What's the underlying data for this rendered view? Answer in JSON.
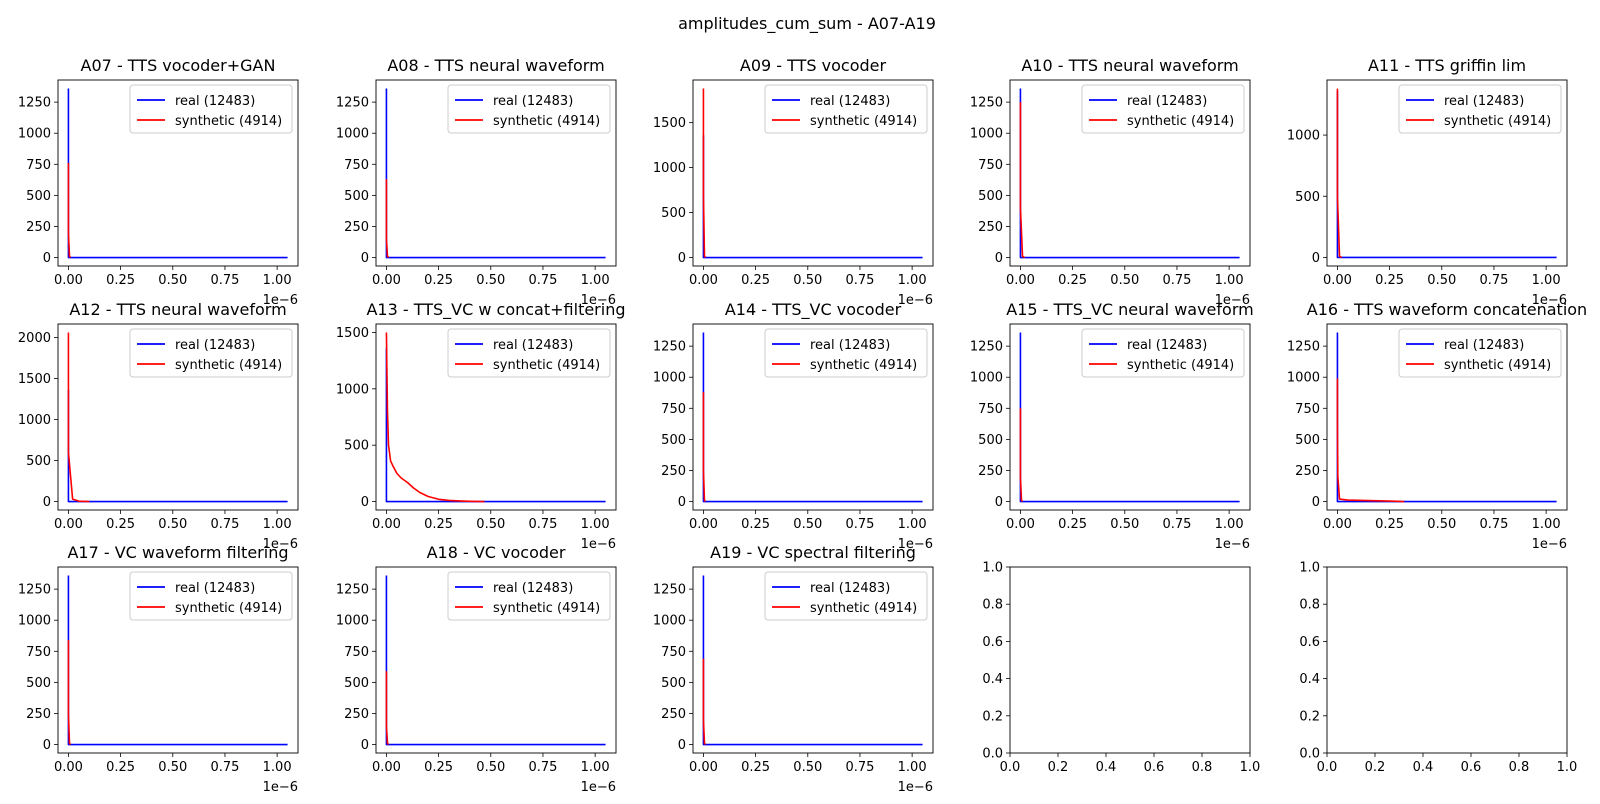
{
  "figure": {
    "suptitle": "amplitudes_cum_sum - A07-A19",
    "colors": {
      "real": "#0000ff",
      "synthetic": "#ff0000",
      "axes": "#000000",
      "legend_border": "#cccccc"
    }
  },
  "chart_data": [
    {
      "type": "line",
      "title": "A07 - TTS vocoder+GAN",
      "x_offset_label": "1e−6",
      "xlim": [
        -5e-08,
        1.1e-06
      ],
      "ylim": [
        -68,
        1428
      ],
      "xticks": [
        "0.00",
        "0.25",
        "0.50",
        "0.75",
        "1.00"
      ],
      "yticks": [
        "0",
        "250",
        "500",
        "750",
        "1000",
        "1250"
      ],
      "ytick_values": [
        0,
        250,
        500,
        750,
        1000,
        1250
      ],
      "legend_position": "upper right",
      "series": [
        {
          "name": "real (12483)",
          "color": "#0000ff",
          "x": [
            0,
            0,
            0,
            0,
            0,
            1.05e-06
          ],
          "y": [
            1360,
            1100,
            900,
            600,
            0,
            0
          ]
        },
        {
          "name": "synthetic (4914)",
          "color": "#ff0000",
          "x": [
            0,
            0,
            0,
            5e-09,
            1e-08
          ],
          "y": [
            760,
            500,
            200,
            10,
            0
          ]
        }
      ]
    },
    {
      "type": "line",
      "title": "A08 - TTS neural waveform",
      "x_offset_label": "1e−6",
      "xlim": [
        -5e-08,
        1.1e-06
      ],
      "ylim": [
        -68,
        1428
      ],
      "xticks": [
        "0.00",
        "0.25",
        "0.50",
        "0.75",
        "1.00"
      ],
      "yticks": [
        "0",
        "250",
        "500",
        "750",
        "1000",
        "1250"
      ],
      "ytick_values": [
        0,
        250,
        500,
        750,
        1000,
        1250
      ],
      "legend_position": "upper right",
      "series": [
        {
          "name": "real (12483)",
          "color": "#0000ff",
          "x": [
            0,
            0,
            0,
            0,
            0,
            1.05e-06
          ],
          "y": [
            1360,
            1100,
            900,
            600,
            0,
            0
          ]
        },
        {
          "name": "synthetic (4914)",
          "color": "#ff0000",
          "x": [
            0,
            0,
            0,
            5e-09,
            1e-08
          ],
          "y": [
            630,
            400,
            150,
            10,
            0
          ]
        }
      ]
    },
    {
      "type": "line",
      "title": "A09 - TTS vocoder",
      "x_offset_label": "1e−6",
      "xlim": [
        -5e-08,
        1.1e-06
      ],
      "ylim": [
        -94,
        1974
      ],
      "xticks": [
        "0.00",
        "0.25",
        "0.50",
        "0.75",
        "1.00"
      ],
      "yticks": [
        "0",
        "500",
        "1000",
        "1500"
      ],
      "ytick_values": [
        0,
        500,
        1000,
        1500
      ],
      "legend_position": "upper right",
      "series": [
        {
          "name": "real (12483)",
          "color": "#0000ff",
          "x": [
            0,
            0,
            0,
            0,
            0,
            1.05e-06
          ],
          "y": [
            1360,
            1100,
            900,
            600,
            0,
            0
          ]
        },
        {
          "name": "synthetic (4914)",
          "color": "#ff0000",
          "x": [
            0,
            0,
            0,
            5e-09,
            1e-08
          ],
          "y": [
            1880,
            1400,
            700,
            20,
            0
          ]
        }
      ]
    },
    {
      "type": "line",
      "title": "A10 - TTS neural waveform",
      "x_offset_label": "1e−6",
      "xlim": [
        -5e-08,
        1.1e-06
      ],
      "ylim": [
        -68,
        1428
      ],
      "xticks": [
        "0.00",
        "0.25",
        "0.50",
        "0.75",
        "1.00"
      ],
      "yticks": [
        "0",
        "250",
        "500",
        "750",
        "1000",
        "1250"
      ],
      "ytick_values": [
        0,
        250,
        500,
        750,
        1000,
        1250
      ],
      "legend_position": "upper right",
      "series": [
        {
          "name": "real (12483)",
          "color": "#0000ff",
          "x": [
            0,
            0,
            0,
            0,
            0,
            1.05e-06
          ],
          "y": [
            1360,
            1100,
            900,
            600,
            0,
            0
          ]
        },
        {
          "name": "synthetic (4914)",
          "color": "#ff0000",
          "x": [
            0,
            0,
            0,
            1e-08,
            2e-08
          ],
          "y": [
            1250,
            900,
            400,
            10,
            0
          ]
        }
      ]
    },
    {
      "type": "line",
      "title": "A11 - TTS griffin lim",
      "x_offset_label": "1e−6",
      "xlim": [
        -5e-08,
        1.1e-06
      ],
      "ylim": [
        -70,
        1450
      ],
      "xticks": [
        "0.00",
        "0.25",
        "0.50",
        "0.75",
        "1.00"
      ],
      "yticks": [
        "0",
        "500",
        "1000"
      ],
      "ytick_values": [
        0,
        500,
        1000
      ],
      "legend_position": "upper right",
      "series": [
        {
          "name": "real (12483)",
          "color": "#0000ff",
          "x": [
            0,
            0,
            0,
            0,
            0,
            1.05e-06
          ],
          "y": [
            1360,
            1100,
            900,
            600,
            0,
            0
          ]
        },
        {
          "name": "synthetic (4914)",
          "color": "#ff0000",
          "x": [
            0,
            0,
            0,
            1e-08,
            2e-08
          ],
          "y": [
            1380,
            1000,
            500,
            10,
            0
          ]
        }
      ]
    },
    {
      "type": "line",
      "title": "A12 - TTS neural waveform",
      "x_offset_label": "1e−6",
      "xlim": [
        -5e-08,
        1.1e-06
      ],
      "ylim": [
        -103,
        2163
      ],
      "xticks": [
        "0.00",
        "0.25",
        "0.50",
        "0.75",
        "1.00"
      ],
      "yticks": [
        "0",
        "500",
        "1000",
        "1500",
        "2000"
      ],
      "ytick_values": [
        0,
        500,
        1000,
        1500,
        2000
      ],
      "legend_position": "upper right",
      "series": [
        {
          "name": "real (12483)",
          "color": "#0000ff",
          "x": [
            0,
            0,
            0,
            0,
            0,
            1.05e-06
          ],
          "y": [
            1360,
            1100,
            900,
            600,
            0,
            0
          ]
        },
        {
          "name": "synthetic (4914)",
          "color": "#ff0000",
          "x": [
            0,
            0,
            0,
            2e-08,
            5e-08,
            1e-07
          ],
          "y": [
            2060,
            1500,
            600,
            30,
            5,
            0
          ]
        }
      ]
    },
    {
      "type": "line",
      "title": "A13 - TTS_VC w concat+filtering",
      "x_offset_label": "1e−6",
      "xlim": [
        -5e-08,
        1.1e-06
      ],
      "ylim": [
        -75,
        1575
      ],
      "xticks": [
        "0.00",
        "0.25",
        "0.50",
        "0.75",
        "1.00"
      ],
      "yticks": [
        "0",
        "500",
        "1000",
        "1500"
      ],
      "ytick_values": [
        0,
        500,
        1000,
        1500
      ],
      "legend_position": "upper right",
      "series": [
        {
          "name": "real (12483)",
          "color": "#0000ff",
          "x": [
            0,
            0,
            0,
            0,
            0,
            1.05e-06
          ],
          "y": [
            1360,
            1100,
            900,
            600,
            0,
            0
          ]
        },
        {
          "name": "synthetic (4914)",
          "color": "#ff0000",
          "x": [
            0,
            2e-09,
            5e-09,
            1e-08,
            2e-08,
            3e-08,
            5e-08,
            7e-08,
            1e-07,
            1.3e-07,
            1.6e-07,
            2e-07,
            2.5e-07,
            3e-07,
            3.5e-07,
            4e-07,
            4.7e-07
          ],
          "y": [
            1500,
            1200,
            800,
            500,
            360,
            320,
            250,
            210,
            170,
            120,
            80,
            45,
            20,
            10,
            5,
            2,
            0
          ]
        }
      ]
    },
    {
      "type": "line",
      "title": "A14 - TTS_VC vocoder",
      "x_offset_label": "1e−6",
      "xlim": [
        -5e-08,
        1.1e-06
      ],
      "ylim": [
        -68,
        1428
      ],
      "xticks": [
        "0.00",
        "0.25",
        "0.50",
        "0.75",
        "1.00"
      ],
      "yticks": [
        "0",
        "250",
        "500",
        "750",
        "1000",
        "1250"
      ],
      "ytick_values": [
        0,
        250,
        500,
        750,
        1000,
        1250
      ],
      "legend_position": "upper right",
      "series": [
        {
          "name": "real (12483)",
          "color": "#0000ff",
          "x": [
            0,
            0,
            0,
            0,
            0,
            1.05e-06
          ],
          "y": [
            1360,
            1100,
            900,
            600,
            0,
            0
          ]
        },
        {
          "name": "synthetic (4914)",
          "color": "#ff0000",
          "x": [
            0,
            0,
            0,
            5e-09,
            1e-08
          ],
          "y": [
            880,
            600,
            250,
            10,
            0
          ]
        }
      ]
    },
    {
      "type": "line",
      "title": "A15 - TTS_VC neural waveform",
      "x_offset_label": "1e−6",
      "xlim": [
        -5e-08,
        1.1e-06
      ],
      "ylim": [
        -68,
        1428
      ],
      "xticks": [
        "0.00",
        "0.25",
        "0.50",
        "0.75",
        "1.00"
      ],
      "yticks": [
        "0",
        "250",
        "500",
        "750",
        "1000",
        "1250"
      ],
      "ytick_values": [
        0,
        250,
        500,
        750,
        1000,
        1250
      ],
      "legend_position": "upper right",
      "series": [
        {
          "name": "real (12483)",
          "color": "#0000ff",
          "x": [
            0,
            0,
            0,
            0,
            0,
            1.05e-06
          ],
          "y": [
            1360,
            1100,
            900,
            600,
            0,
            0
          ]
        },
        {
          "name": "synthetic (4914)",
          "color": "#ff0000",
          "x": [
            0,
            0,
            0,
            5e-09,
            1e-08
          ],
          "y": [
            750,
            500,
            200,
            10,
            0
          ]
        }
      ]
    },
    {
      "type": "line",
      "title": "A16 - TTS waveform concatenation",
      "x_offset_label": "1e−6",
      "xlim": [
        -5e-08,
        1.1e-06
      ],
      "ylim": [
        -68,
        1428
      ],
      "xticks": [
        "0.00",
        "0.25",
        "0.50",
        "0.75",
        "1.00"
      ],
      "yticks": [
        "0",
        "250",
        "500",
        "750",
        "1000",
        "1250"
      ],
      "ytick_values": [
        0,
        250,
        500,
        750,
        1000,
        1250
      ],
      "legend_position": "upper right",
      "series": [
        {
          "name": "real (12483)",
          "color": "#0000ff",
          "x": [
            0,
            0,
            0,
            0,
            0,
            1.05e-06
          ],
          "y": [
            1360,
            1100,
            900,
            600,
            0,
            0
          ]
        },
        {
          "name": "synthetic (4914)",
          "color": "#ff0000",
          "x": [
            0,
            0,
            2e-09,
            1e-08,
            5e-08,
            1.5e-07,
            2.5e-07,
            3.2e-07
          ],
          "y": [
            990,
            600,
            200,
            20,
            12,
            8,
            4,
            0
          ]
        }
      ]
    },
    {
      "type": "line",
      "title": "A17 - VC waveform filtering",
      "x_offset_label": "1e−6",
      "xlim": [
        -5e-08,
        1.1e-06
      ],
      "ylim": [
        -68,
        1428
      ],
      "xticks": [
        "0.00",
        "0.25",
        "0.50",
        "0.75",
        "1.00"
      ],
      "yticks": [
        "0",
        "250",
        "500",
        "750",
        "1000",
        "1250"
      ],
      "ytick_values": [
        0,
        250,
        500,
        750,
        1000,
        1250
      ],
      "legend_position": "upper right",
      "series": [
        {
          "name": "real (12483)",
          "color": "#0000ff",
          "x": [
            0,
            0,
            0,
            0,
            0,
            1.05e-06
          ],
          "y": [
            1360,
            1100,
            900,
            600,
            0,
            0
          ]
        },
        {
          "name": "synthetic (4914)",
          "color": "#ff0000",
          "x": [
            0,
            0,
            0,
            5e-09,
            1e-08
          ],
          "y": [
            840,
            600,
            250,
            10,
            0
          ]
        }
      ]
    },
    {
      "type": "line",
      "title": "A18 - VC vocoder",
      "x_offset_label": "1e−6",
      "xlim": [
        -5e-08,
        1.1e-06
      ],
      "ylim": [
        -68,
        1428
      ],
      "xticks": [
        "0.00",
        "0.25",
        "0.50",
        "0.75",
        "1.00"
      ],
      "yticks": [
        "0",
        "250",
        "500",
        "750",
        "1000",
        "1250"
      ],
      "ytick_values": [
        0,
        250,
        500,
        750,
        1000,
        1250
      ],
      "legend_position": "upper right",
      "series": [
        {
          "name": "real (12483)",
          "color": "#0000ff",
          "x": [
            0,
            0,
            0,
            0,
            0,
            1.05e-06
          ],
          "y": [
            1360,
            1100,
            900,
            600,
            0,
            0
          ]
        },
        {
          "name": "synthetic (4914)",
          "color": "#ff0000",
          "x": [
            0,
            0,
            0,
            5e-09,
            1e-08
          ],
          "y": [
            590,
            400,
            150,
            10,
            0
          ]
        }
      ]
    },
    {
      "type": "line",
      "title": "A19 - VC spectral filtering",
      "x_offset_label": "1e−6",
      "xlim": [
        -5e-08,
        1.1e-06
      ],
      "ylim": [
        -68,
        1428
      ],
      "xticks": [
        "0.00",
        "0.25",
        "0.50",
        "0.75",
        "1.00"
      ],
      "yticks": [
        "0",
        "250",
        "500",
        "750",
        "1000",
        "1250"
      ],
      "ytick_values": [
        0,
        250,
        500,
        750,
        1000,
        1250
      ],
      "legend_position": "upper right",
      "series": [
        {
          "name": "real (12483)",
          "color": "#0000ff",
          "x": [
            0,
            0,
            0,
            0,
            0,
            1.05e-06
          ],
          "y": [
            1360,
            1100,
            900,
            600,
            0,
            0
          ]
        },
        {
          "name": "synthetic (4914)",
          "color": "#ff0000",
          "x": [
            0,
            0,
            0,
            5e-09,
            1e-08
          ],
          "y": [
            690,
            450,
            200,
            10,
            0
          ]
        }
      ]
    },
    {
      "type": "line",
      "title": "",
      "empty": true,
      "xlim": [
        0,
        1
      ],
      "ylim": [
        0,
        1
      ],
      "xticks": [
        "0.0",
        "0.2",
        "0.4",
        "0.6",
        "0.8",
        "1.0"
      ],
      "yticks": [
        "0.0",
        "0.2",
        "0.4",
        "0.6",
        "0.8",
        "1.0"
      ],
      "ytick_values": [
        0,
        0.2,
        0.4,
        0.6,
        0.8,
        1.0
      ],
      "series": []
    },
    {
      "type": "line",
      "title": "",
      "empty": true,
      "xlim": [
        0,
        1
      ],
      "ylim": [
        0,
        1
      ],
      "xticks": [
        "0.0",
        "0.2",
        "0.4",
        "0.6",
        "0.8",
        "1.0"
      ],
      "yticks": [
        "0.0",
        "0.2",
        "0.4",
        "0.6",
        "0.8",
        "1.0"
      ],
      "ytick_values": [
        0,
        0.2,
        0.4,
        0.6,
        0.8,
        1.0
      ],
      "series": []
    }
  ]
}
